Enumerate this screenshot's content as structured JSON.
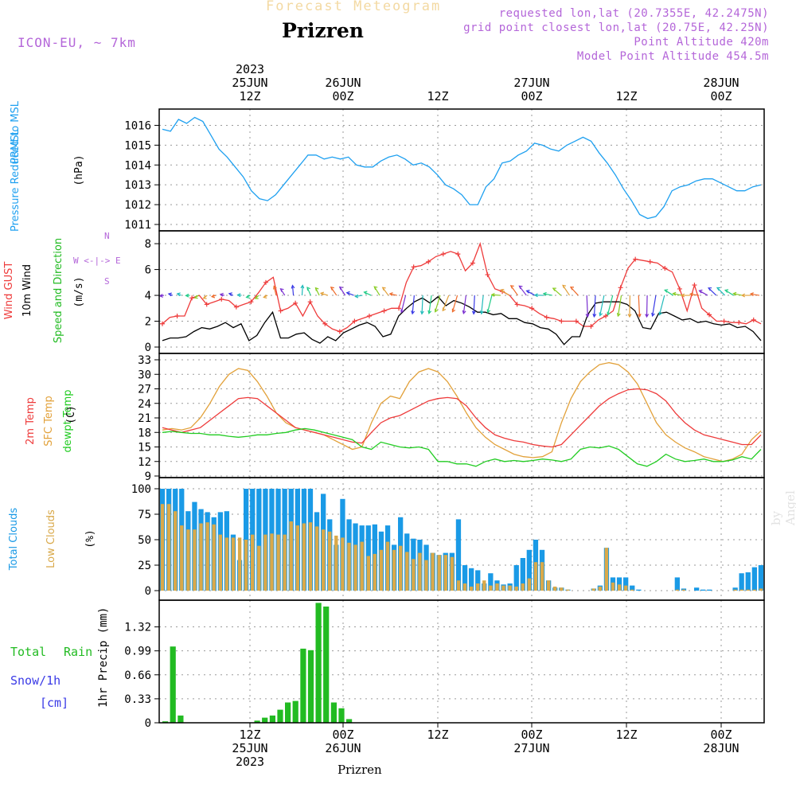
{
  "header": {
    "faint_title": "Forecast Meteogram",
    "city": "Prizren",
    "model": "ICON-EU, ~ 7km",
    "requested": "requested lon,lat (20.7355E, 42.2475N)",
    "grid_point": "grid point closest lon,lat (20.75E, 42.25N)",
    "point_alt": "Point Altitude 420m",
    "model_alt": "Model Point Altitude 454.5m",
    "bottom_name": "Prizren",
    "watermark": "by Angel"
  },
  "time_axis": {
    "top_labels": [
      {
        "idx": 0,
        "lines": [
          "2023",
          "25JUN",
          "12Z"
        ]
      },
      {
        "idx": 1,
        "lines": [
          "26JUN",
          "00Z"
        ]
      },
      {
        "idx": 2,
        "lines": [
          "12Z"
        ]
      },
      {
        "idx": 3,
        "lines": [
          "27JUN",
          "00Z"
        ]
      },
      {
        "idx": 4,
        "lines": [
          "12Z"
        ]
      },
      {
        "idx": 5,
        "lines": [
          "28JUN",
          "00Z"
        ]
      }
    ],
    "bottom_labels": [
      {
        "idx": 0,
        "lines": [
          "12Z",
          "25JUN",
          "2023"
        ]
      },
      {
        "idx": 1,
        "lines": [
          "00Z",
          "26JUN"
        ]
      },
      {
        "idx": 2,
        "lines": [
          "12Z"
        ]
      },
      {
        "idx": 3,
        "lines": [
          "00Z",
          "27JUN"
        ]
      },
      {
        "idx": 4,
        "lines": [
          "12Z"
        ]
      },
      {
        "idx": 5,
        "lines": [
          "00Z",
          "28JUN"
        ]
      }
    ]
  },
  "panel_labels": {
    "pressure": {
      "a": "PRMSL",
      "b": "Pressure Reduced to MSL",
      "unit": "(hPa)"
    },
    "wind": {
      "a": "Wind GUST",
      "b": "10m Wind",
      "c": "Speed and Direction",
      "unit": "(m/s)",
      "compass_h": "W <-|-> E",
      "compass_n": "N",
      "compass_s": "S"
    },
    "temp": {
      "a": "2m Temp",
      "b": "SFC Temp",
      "c": "dewpt Temp",
      "unit": "(C)"
    },
    "clouds": {
      "a": "Total Clouds",
      "b": "Low Clouds",
      "unit": "(%)"
    },
    "precip": {
      "unit": "1hr Precip (mm)",
      "total": "Total",
      "rain": "Rain",
      "snow": "Snow/1h",
      "cm": "[cm]"
    }
  },
  "colors": {
    "pressure": "#1ea0f0",
    "gust": "#ee3b3b",
    "wind": "#000000",
    "temp2m": "#ee3b3b",
    "sfc": "#e2a13a",
    "dew": "#22cc22",
    "total_clouds": "#1a9ae6",
    "low_clouds": "#d9a94a",
    "rain": "#22bb22",
    "snow": "#3a3ae6",
    "label_purple": "#b466d9"
  },
  "chart_data": [
    {
      "type": "line",
      "title": "PRMSL Pressure Reduced to MSL",
      "ylabel": "(hPa)",
      "ylim": [
        1011,
        1016.5
      ],
      "yticks": [
        "1011",
        "1012",
        "1013",
        "1014",
        "1015",
        "1016"
      ],
      "series": [
        {
          "name": "PRMSL",
          "values": [
            1015.8,
            1015.7,
            1016.3,
            1016.1,
            1016.4,
            1016.2,
            1015.5,
            1014.8,
            1014.4,
            1013.9,
            1013.4,
            1012.7,
            1012.3,
            1012.2,
            1012.5,
            1013.0,
            1013.5,
            1014.0,
            1014.5,
            1014.5,
            1014.3,
            1014.4,
            1014.3,
            1014.4,
            1014.0,
            1013.9,
            1013.9,
            1014.2,
            1014.4,
            1014.5,
            1014.3,
            1014.0,
            1014.1,
            1013.9,
            1013.5,
            1013.0,
            1012.8,
            1012.5,
            1012.0,
            1012.0,
            1012.9,
            1013.3,
            1014.1,
            1014.2,
            1014.5,
            1014.7,
            1015.1,
            1015.0,
            1014.8,
            1014.7,
            1015.0,
            1015.2,
            1015.4,
            1015.2,
            1014.6,
            1014.1,
            1013.5,
            1012.8,
            1012.2,
            1011.5,
            1011.3,
            1011.4,
            1011.9,
            1012.7,
            1012.9,
            1013.0,
            1013.2,
            1013.3,
            1013.3,
            1013.1,
            1012.9,
            1012.7,
            1012.7,
            1012.9,
            1013.0
          ]
        }
      ]
    },
    {
      "type": "line",
      "title": "Wind GUST / 10m Wind Speed and Direction",
      "ylabel": "(m/s)",
      "ylim": [
        0,
        8.5
      ],
      "yticks": [
        "0",
        "2",
        "4",
        "6",
        "8"
      ],
      "series": [
        {
          "name": "Wind GUST",
          "values": [
            1.8,
            2.3,
            2.4,
            2.4,
            3.8,
            4.0,
            3.3,
            3.5,
            3.7,
            3.6,
            3.1,
            3.3,
            3.5,
            4.2,
            5.0,
            5.4,
            2.8,
            3.0,
            3.4,
            2.4,
            3.5,
            2.4,
            1.8,
            1.4,
            1.2,
            1.5,
            2.0,
            2.2,
            2.4,
            2.6,
            2.8,
            3.0,
            3.0,
            5.0,
            6.2,
            6.3,
            6.6,
            7.0,
            7.2,
            7.4,
            7.2,
            5.9,
            6.5,
            8.0,
            5.6,
            4.5,
            4.3,
            4.0,
            3.3,
            3.2,
            3.0,
            2.6,
            2.3,
            2.2,
            2.0,
            2.0,
            2.0,
            1.6,
            1.6,
            2.1,
            2.4,
            2.8,
            4.6,
            6.1,
            6.8,
            6.7,
            6.6,
            6.5,
            6.1,
            5.8,
            4.5,
            2.8,
            4.8,
            3.0,
            2.5,
            2.0,
            2.0,
            1.9,
            1.9,
            1.8,
            2.1,
            1.8
          ]
        },
        {
          "name": "10m Wind",
          "values": [
            0.5,
            0.7,
            0.7,
            0.8,
            1.2,
            1.5,
            1.4,
            1.6,
            1.9,
            1.5,
            1.8,
            0.5,
            0.9,
            1.9,
            2.7,
            0.7,
            0.7,
            1.0,
            1.1,
            0.6,
            0.3,
            0.8,
            0.5,
            1.1,
            1.4,
            1.7,
            1.9,
            1.6,
            0.8,
            1.0,
            2.4,
            3.0,
            3.5,
            3.8,
            3.4,
            3.9,
            3.2,
            3.6,
            3.4,
            3.1,
            2.7,
            2.7,
            2.5,
            2.6,
            2.2,
            2.2,
            1.9,
            1.8,
            1.5,
            1.4,
            1.0,
            0.2,
            0.8,
            0.8,
            2.5,
            3.4,
            3.5,
            3.5,
            3.5,
            3.3,
            2.8,
            1.5,
            1.4,
            2.6,
            2.7,
            2.4,
            2.1,
            2.2,
            1.9,
            2.0,
            1.8,
            1.7,
            1.8,
            1.5,
            1.6,
            1.2,
            0.5
          ]
        }
      ]
    },
    {
      "type": "line",
      "title": "2m Temp / SFC Temp / dewpt Temp",
      "ylabel": "(C)",
      "ylim": [
        9,
        33
      ],
      "yticks": [
        "9",
        "12",
        "15",
        "18",
        "21",
        "24",
        "27",
        "30",
        "33"
      ],
      "series": [
        {
          "name": "2m Temp",
          "values": [
            19.0,
            18.5,
            18.0,
            18.5,
            19.0,
            20.5,
            22.0,
            23.5,
            25.0,
            25.2,
            25.0,
            23.5,
            22.0,
            20.5,
            19.0,
            18.5,
            18.0,
            17.5,
            17.0,
            16.5,
            16.0,
            15.8,
            18.0,
            20.0,
            21.0,
            21.5,
            22.5,
            23.5,
            24.5,
            25.0,
            25.2,
            25.0,
            23.5,
            21.0,
            19.0,
            17.5,
            16.8,
            16.3,
            16.0,
            15.5,
            15.2,
            15.0,
            15.5,
            17.5,
            19.5,
            21.5,
            23.5,
            25.0,
            26.0,
            26.8,
            27.0,
            26.8,
            26.0,
            24.5,
            22.0,
            20.0,
            18.5,
            17.5,
            17.0,
            16.5,
            16.0,
            15.5,
            15.5,
            17.5
          ]
        },
        {
          "name": "SFC Temp",
          "values": [
            18.5,
            18.8,
            18.5,
            19.0,
            21.0,
            24.0,
            27.5,
            30.0,
            31.2,
            30.8,
            28.5,
            25.5,
            22.0,
            20.0,
            19.0,
            18.5,
            18.0,
            17.5,
            16.5,
            15.5,
            14.5,
            15.0,
            20.0,
            24.0,
            25.5,
            25.0,
            28.5,
            30.5,
            31.2,
            30.5,
            28.5,
            25.5,
            22.0,
            19.0,
            17.0,
            15.5,
            14.5,
            13.5,
            13.0,
            12.8,
            13.0,
            14.0,
            20.0,
            25.0,
            28.5,
            30.5,
            32.0,
            32.4,
            32.0,
            30.5,
            28.0,
            24.0,
            20.0,
            17.5,
            16.0,
            14.8,
            14.0,
            13.0,
            12.5,
            12.0,
            12.5,
            13.5,
            16.5,
            18.3
          ]
        },
        {
          "name": "dewpt Temp",
          "values": [
            18.0,
            18.2,
            18.0,
            17.8,
            17.8,
            17.5,
            17.5,
            17.2,
            17.0,
            17.2,
            17.5,
            17.5,
            17.8,
            18.0,
            18.5,
            18.8,
            18.5,
            18.0,
            17.5,
            17.0,
            16.5,
            15.0,
            14.5,
            16.0,
            15.5,
            15.0,
            14.8,
            15.0,
            14.5,
            12.0,
            12.0,
            11.5,
            11.5,
            11.0,
            12.0,
            12.5,
            12.0,
            12.2,
            12.0,
            12.2,
            12.5,
            12.3,
            12.0,
            12.5,
            14.5,
            15.0,
            14.8,
            15.2,
            14.5,
            13.0,
            11.5,
            11.0,
            12.0,
            13.5,
            12.5,
            12.0,
            12.2,
            12.5,
            12.0,
            12.0,
            12.3,
            13.0,
            12.5,
            14.5
          ]
        }
      ]
    },
    {
      "type": "bar",
      "title": "Total Clouds / Low Clouds",
      "ylabel": "(%)",
      "ylim": [
        0,
        100
      ],
      "yticks": [
        "0",
        "25",
        "50",
        "75",
        "100"
      ],
      "series": [
        {
          "name": "Total Clouds",
          "values": [
            100,
            100,
            100,
            100,
            78,
            87,
            80,
            77,
            72,
            77,
            78,
            55,
            30,
            100,
            100,
            100,
            100,
            100,
            100,
            100,
            100,
            100,
            100,
            100,
            77,
            95,
            70,
            45,
            90,
            70,
            66,
            64,
            64,
            65,
            58,
            64,
            45,
            72,
            56,
            51,
            50,
            45,
            37,
            35,
            37,
            37,
            70,
            25,
            22,
            20,
            7,
            17,
            10,
            6,
            7,
            25,
            32,
            40,
            50,
            40,
            10,
            3,
            3,
            1,
            0,
            0,
            0,
            2,
            5,
            42,
            13,
            13,
            13,
            5,
            1,
            0,
            0,
            0,
            0,
            0,
            13,
            2,
            0,
            3,
            1,
            1,
            0,
            0,
            0,
            3,
            17,
            18,
            23,
            25
          ]
        },
        {
          "name": "Low Clouds",
          "values": [
            85,
            85,
            78,
            64,
            60,
            60,
            66,
            67,
            65,
            55,
            52,
            52,
            52,
            50,
            55,
            44,
            55,
            56,
            55,
            55,
            68,
            64,
            66,
            67,
            63,
            60,
            58,
            54,
            52,
            47,
            45,
            48,
            34,
            36,
            40,
            48,
            40,
            44,
            38,
            31,
            37,
            30,
            37,
            35,
            35,
            33,
            10,
            7,
            4,
            7,
            10,
            5,
            7,
            5,
            5,
            4,
            7,
            12,
            28,
            28,
            10,
            4,
            3,
            1,
            0,
            0,
            0,
            2,
            4,
            42,
            8,
            6,
            5,
            1,
            0,
            0,
            0,
            0,
            0,
            0,
            1,
            1,
            0,
            0,
            0,
            0,
            0,
            0,
            0,
            1,
            1,
            1,
            1,
            2
          ]
        }
      ]
    },
    {
      "type": "bar",
      "title": "1hr Precip (mm)",
      "ylabel": "1hr Precip (mm)",
      "ylim": [
        0,
        1.6
      ],
      "yticks": [
        "0",
        "0.33",
        "0.66",
        "0.99",
        "1.32"
      ],
      "series": [
        {
          "name": "Total Rain",
          "values": [
            0.02,
            1.05,
            0.1,
            0,
            0,
            0,
            0,
            0,
            0,
            0,
            0,
            0,
            0.03,
            0.07,
            0.1,
            0.18,
            0.28,
            0.3,
            1.02,
            1.0,
            1.65,
            1.6,
            0.28,
            0.2,
            0.05,
            0,
            0,
            0,
            0
          ]
        },
        {
          "name": "Snow/1h",
          "values": [
            0,
            0,
            0,
            0,
            0,
            0,
            0,
            0,
            0,
            0,
            0,
            0,
            0,
            0,
            0,
            0,
            0,
            0,
            0,
            0,
            0,
            0,
            0,
            0,
            0,
            0,
            0,
            0,
            0
          ]
        }
      ]
    }
  ]
}
